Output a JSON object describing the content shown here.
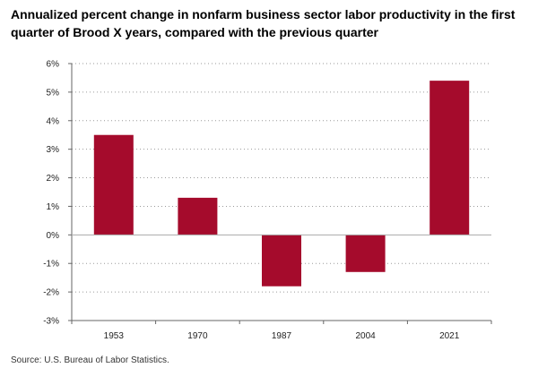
{
  "chart_data": {
    "type": "bar",
    "title": "Annualized percent change in nonfarm business sector labor productivity in the first quarter of Brood X years, compared with the previous quarter",
    "categories": [
      "1953",
      "1970",
      "1987",
      "2004",
      "2021"
    ],
    "values": [
      3.5,
      1.3,
      -1.8,
      -1.3,
      5.4
    ],
    "ylim": [
      -3,
      6
    ],
    "yticks": [
      "6%",
      "5%",
      "4%",
      "3%",
      "2%",
      "1%",
      "0%",
      "-1%",
      "-2%",
      "-3%"
    ],
    "grid": true,
    "xlabel": "",
    "ylabel": "",
    "bar_color": "#a50b2c",
    "source": "Source: U.S. Bureau of Labor Statistics."
  }
}
